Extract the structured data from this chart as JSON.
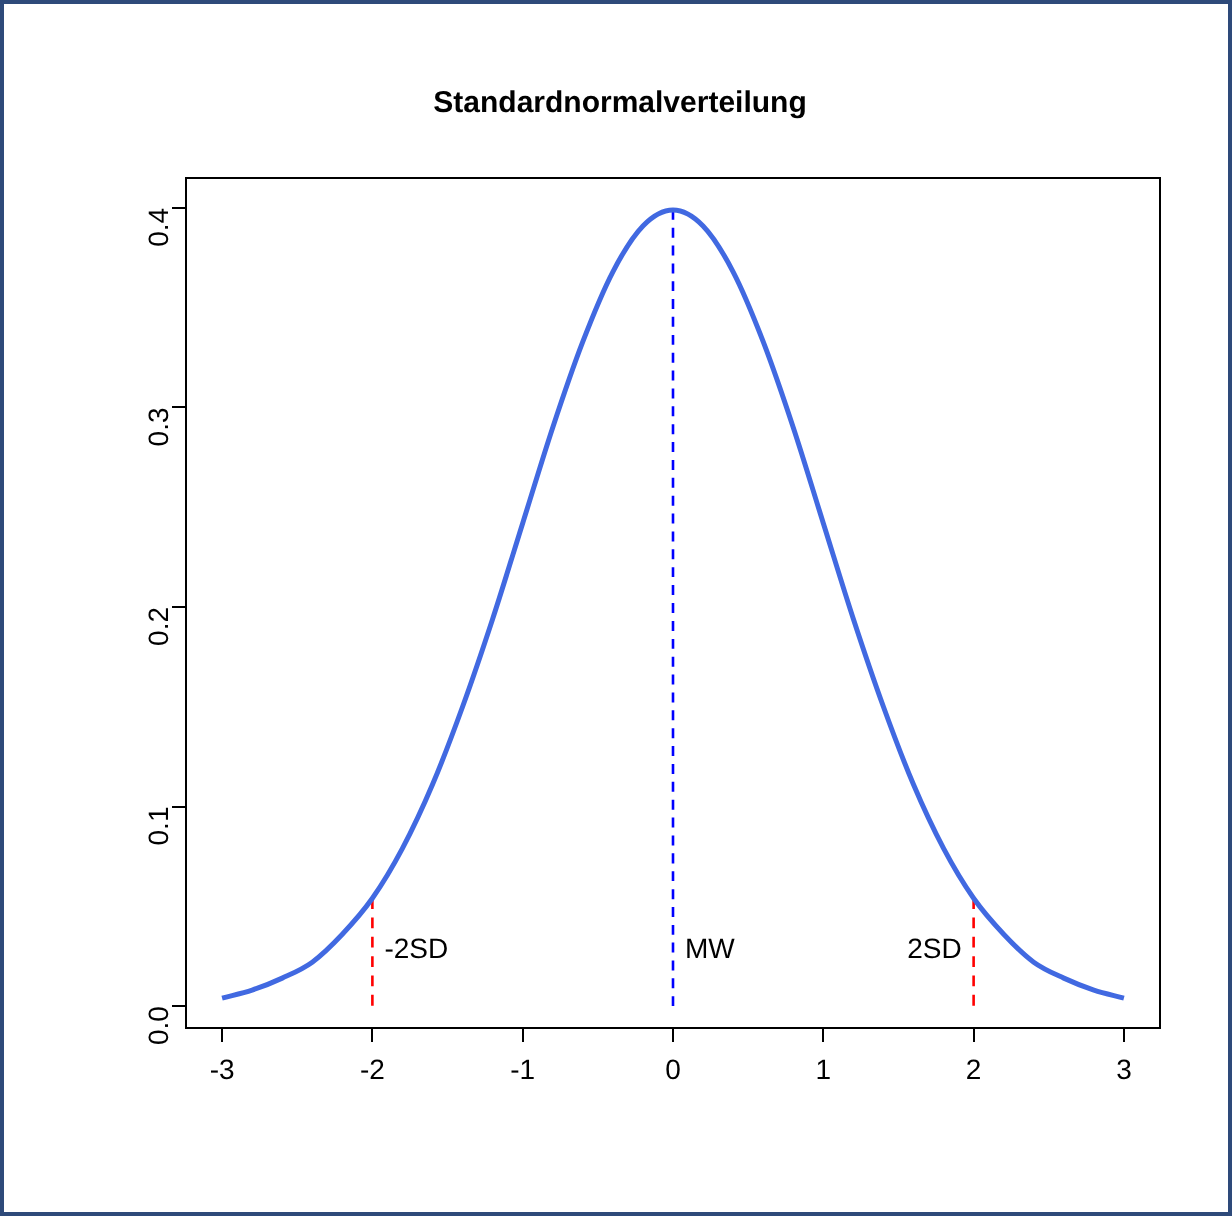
{
  "chart_data": {
    "type": "line",
    "title": "Standardnormalverteilung",
    "xlim": [
      -3.24,
      3.24
    ],
    "xticks": [
      -3,
      -2,
      -1,
      0,
      1,
      2,
      3
    ],
    "ylim": [
      -0.011,
      0.415
    ],
    "yticks": [
      {
        "value": 0,
        "label": "0.0"
      },
      0.1,
      0.2,
      0.3,
      0.4
    ],
    "series": [
      {
        "color": "#4169e1",
        "line_style": "solid",
        "x": [
          -3,
          -2.8,
          -2.6,
          -2.4,
          -2.2,
          -2,
          -1.8,
          -1.6,
          -1.4,
          -1.2,
          -1,
          -0.8,
          -0.6,
          -0.4,
          -0.2,
          0,
          0.2,
          0.4,
          0.6,
          0.8,
          1,
          1.2,
          1.4,
          1.6,
          1.8,
          2,
          2.2,
          2.4,
          2.6,
          2.8,
          3
        ],
        "values": [
          0.004,
          0.008,
          0.014,
          0.022,
          0.036,
          0.054,
          0.079,
          0.111,
          0.15,
          0.194,
          0.242,
          0.29,
          0.333,
          0.368,
          0.391,
          0.399,
          0.391,
          0.368,
          0.333,
          0.29,
          0.242,
          0.194,
          0.15,
          0.111,
          0.079,
          0.054,
          0.036,
          0.022,
          0.014,
          0.008,
          0.004
        ]
      },
      {
        "color": "#ff0000",
        "line_style": "dashed",
        "x": [
          -2,
          -2
        ],
        "values": [
          0.054,
          0
        ]
      },
      {
        "color": "#0000ff",
        "line_style": "dashed",
        "x": [
          0,
          0
        ],
        "values": [
          0.399,
          0
        ]
      },
      {
        "color": "#ff0000",
        "line_style": "dashed",
        "x": [
          2,
          2
        ],
        "values": [
          0.054,
          0
        ]
      }
    ],
    "annotations": [
      {
        "text": "-2SD",
        "x": -2,
        "y": 0.028
      },
      {
        "text": "MW",
        "x": 0,
        "y": 0.028
      },
      {
        "text": "2SD",
        "x": 2,
        "y": 0.028
      }
    ]
  }
}
